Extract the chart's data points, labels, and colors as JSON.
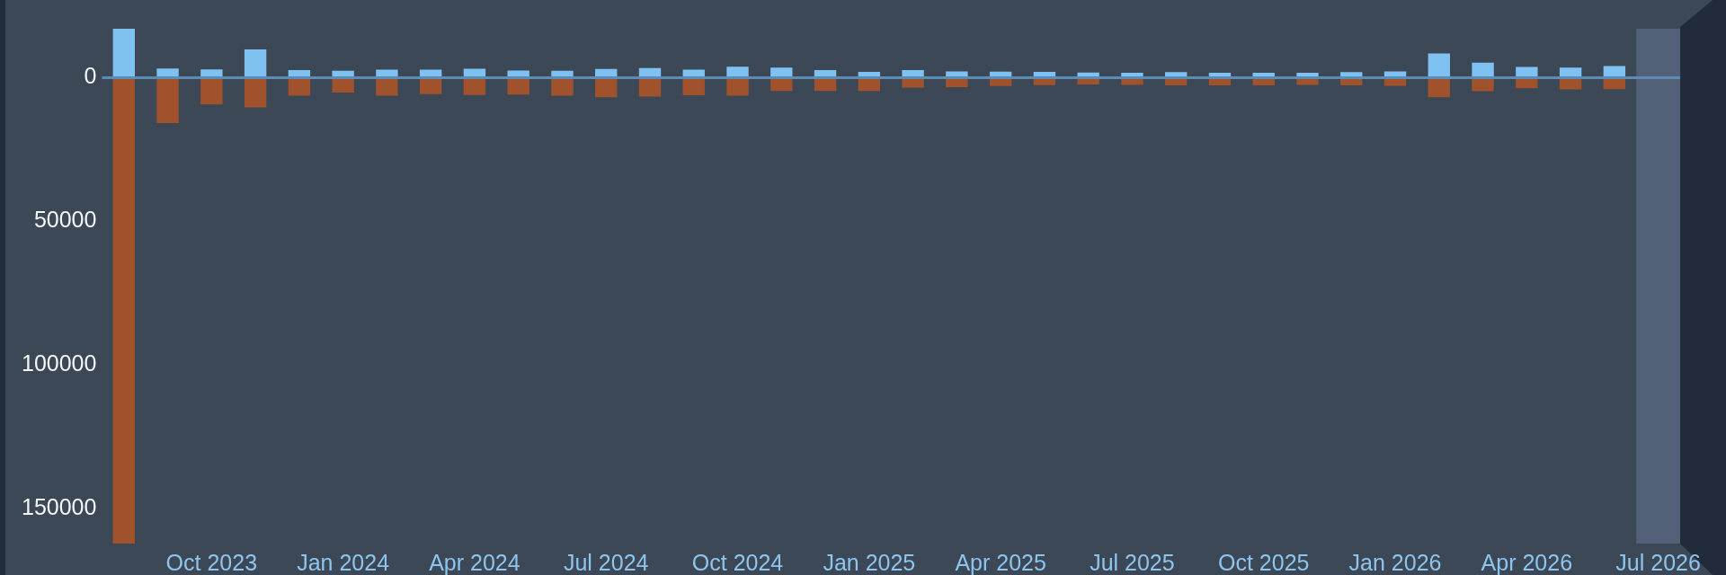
{
  "chart_data": {
    "type": "bar",
    "stacked": true,
    "categories": [
      null,
      null,
      "Oct 2023",
      null,
      null,
      "Jan 2024",
      null,
      null,
      "Apr 2024",
      null,
      null,
      "Jul 2024",
      null,
      null,
      "Oct 2024",
      null,
      null,
      "Jan 2025",
      null,
      null,
      "Apr 2025",
      null,
      null,
      "Jul 2025",
      null,
      null,
      "Oct 2025",
      null,
      null,
      "Jan 2026",
      null,
      null,
      "Apr 2026",
      null,
      null,
      "Jul 2026"
    ],
    "series": [
      {
        "color": "#7fc1f0",
        "values": [
          -17000,
          -3200,
          -2900,
          -9800,
          -2600,
          -2400,
          -2800,
          -2800,
          -3100,
          -2500,
          -2400,
          -3000,
          -3300,
          -2800,
          -3800,
          -3500,
          -2600,
          -2000,
          -2600,
          -2200,
          -2100,
          -2000,
          -1800,
          -1700,
          -1900,
          -1700,
          -1700,
          -1700,
          -1900,
          -2200,
          -8400,
          -5200,
          -3700,
          -3500,
          -4000,
          null
        ]
      },
      {
        "color": "#a0522d",
        "values": [
          162000,
          15800,
          9300,
          10300,
          6300,
          5200,
          6300,
          5700,
          6000,
          5900,
          6300,
          6800,
          6600,
          6100,
          6300,
          4600,
          4600,
          4600,
          3500,
          3300,
          2900,
          2600,
          2400,
          2500,
          2700,
          2700,
          2700,
          2500,
          2700,
          2800,
          6800,
          4700,
          3700,
          4100,
          4000,
          null
        ]
      }
    ],
    "ylim": [
      162000,
      -17000
    ],
    "yticks": [
      0,
      50000,
      100000,
      150000
    ],
    "ref_lines": [
      {
        "axis": "y",
        "value": 0,
        "color": "#5a8cb5"
      }
    ],
    "bands": [
      {
        "axis": "x",
        "from": "Jul 2026",
        "to": "Jul 2026",
        "color": "#526177"
      }
    ]
  }
}
